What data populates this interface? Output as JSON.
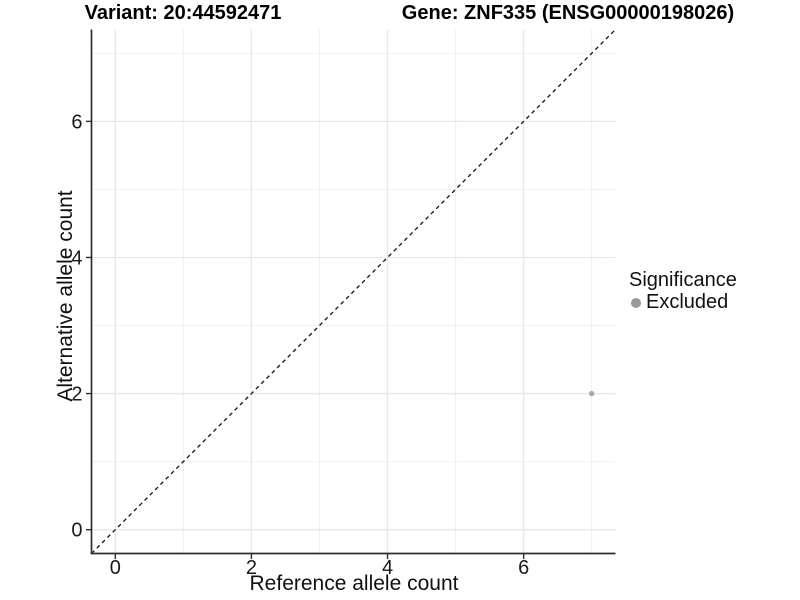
{
  "chart_data": {
    "type": "scatter",
    "title_left": "Variant: 20:44592471",
    "title_right": "Gene: ZNF335 (ENSG00000198026)",
    "xlabel": "Reference allele count",
    "ylabel": "Alternative allele count",
    "xlim": [
      -0.35,
      7.35
    ],
    "ylim": [
      -0.35,
      7.35
    ],
    "x_ticks": [
      0,
      2,
      4,
      6
    ],
    "y_ticks": [
      0,
      2,
      4,
      6
    ],
    "x_minor": [
      1,
      3,
      5,
      7
    ],
    "y_minor": [
      1,
      3,
      5,
      7
    ],
    "grid": true,
    "points": [
      {
        "x": 7,
        "y": 2,
        "series": "Excluded",
        "color": "#a9a9a9"
      }
    ],
    "identity_line": {
      "style": "dashed",
      "color": "#111111",
      "from": [
        -0.35,
        -0.35
      ],
      "to": [
        7.35,
        7.35
      ]
    },
    "legend": {
      "title": "Significance",
      "position": "right",
      "entries": [
        {
          "label": "Excluded",
          "color": "#9a9a9a"
        }
      ]
    },
    "colors": {
      "grid_major": "#e7e7e7",
      "grid_minor": "#f0f0f0",
      "axis": "#2e2e2e",
      "background": "#ffffff"
    }
  }
}
